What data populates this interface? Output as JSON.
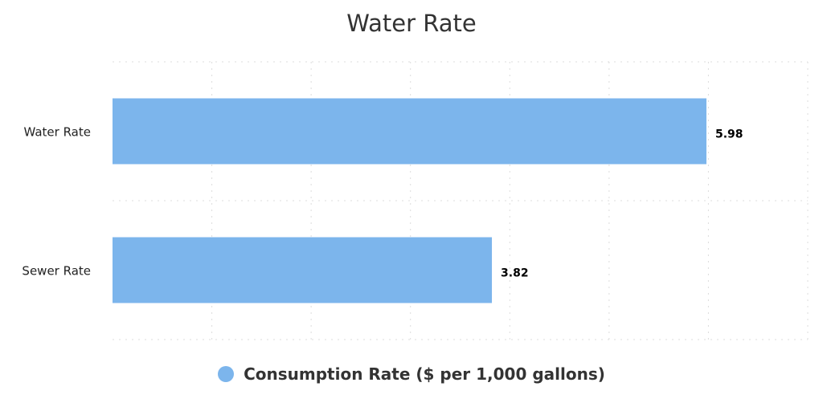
{
  "chart_data": {
    "type": "bar",
    "orientation": "horizontal",
    "title": "Water Rate",
    "categories": [
      "Water Rate",
      "Sewer Rate"
    ],
    "series": [
      {
        "name": "Consumption Rate ($ per 1,000 gallons)",
        "values": [
          5.98,
          3.82
        ],
        "color": "#7cb5ec"
      }
    ],
    "data_labels": [
      "5.98",
      "3.82"
    ],
    "xlim": [
      0,
      7
    ],
    "xlabel": "",
    "ylabel": "",
    "grid": true,
    "legend": "bottom"
  }
}
